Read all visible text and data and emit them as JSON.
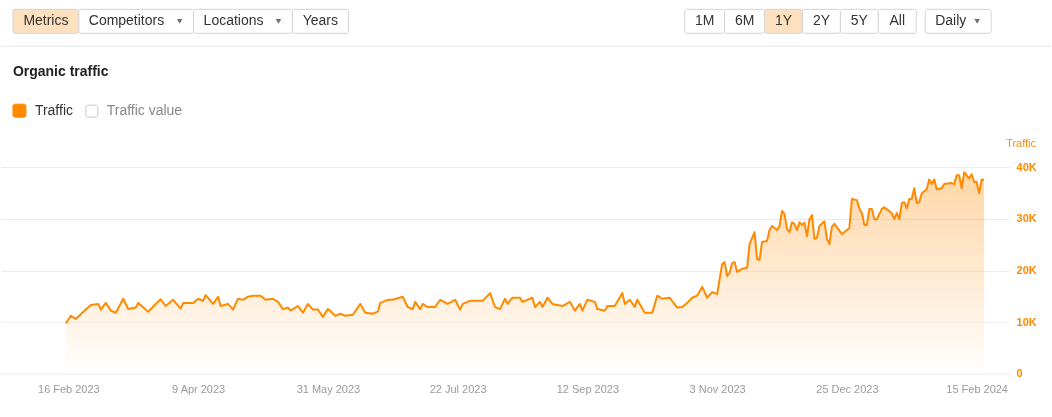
{
  "chart_data": {
    "type": "area",
    "title": "Organic traffic",
    "ylabel": "Traffic",
    "annotations": [
      "Metrics",
      "Competitors",
      "Locations",
      "Years",
      "1M",
      "6M",
      "1Y",
      "2Y",
      "5Y",
      "All",
      "Daily",
      "Traffic value"
    ],
    "legend": "top left",
    "grid": "y",
    "xlim": [
      "2023-01-20",
      "2024-02-28"
    ],
    "xticks": [
      {
        "value": "2023-02-16",
        "label": "16 Feb 2023"
      },
      {
        "value": "2023-04-09",
        "label": "9 Apr 2023"
      },
      {
        "value": "2023-05-31",
        "label": "31 May 2023"
      },
      {
        "value": "2023-07-22",
        "label": "22 Jul 2023"
      },
      {
        "value": "2023-09-12",
        "label": "12 Sep 2023"
      },
      {
        "value": "2023-11-03",
        "label": "3 Nov 2023"
      },
      {
        "value": "2023-12-25",
        "label": "25 Dec 2023"
      },
      {
        "value": "2024-02-15",
        "label": "15 Feb 2024"
      }
    ],
    "ylim": [
      0,
      40000
    ],
    "yticks": [
      0,
      {
        "value": 10000,
        "label": "10K"
      },
      {
        "value": 20000,
        "label": "20K"
      },
      {
        "value": 30000,
        "label": "30K"
      },
      {
        "value": 40000,
        "label": "40K"
      }
    ],
    "x": [
      "2023-02-15",
      "2023-02-17",
      "2023-02-19",
      "2023-02-22",
      "2023-02-25",
      "2023-02-28",
      "2023-03-01",
      "2023-03-03",
      "2023-03-05",
      "2023-03-07",
      "2023-03-10",
      "2023-03-12",
      "2023-03-15",
      "2023-03-16",
      "2023-03-20",
      "2023-03-23",
      "2023-03-25",
      "2023-03-27",
      "2023-03-30",
      "2023-04-02",
      "2023-04-03",
      "2023-04-07",
      "2023-04-09",
      "2023-04-11",
      "2023-04-12",
      "2023-04-15",
      "2023-04-17",
      "2023-04-18",
      "2023-04-21",
      "2023-04-23",
      "2023-04-25",
      "2023-04-27",
      "2023-04-29",
      "2023-05-01",
      "2023-05-04",
      "2023-05-06",
      "2023-05-09",
      "2023-05-11",
      "2023-05-13",
      "2023-05-15",
      "2023-05-16",
      "2023-05-19",
      "2023-05-21",
      "2023-05-23",
      "2023-05-25",
      "2023-05-27",
      "2023-05-29",
      "2023-05-31",
      "2023-06-03",
      "2023-06-05",
      "2023-06-07",
      "2023-06-10",
      "2023-06-13",
      "2023-06-15",
      "2023-06-18",
      "2023-06-20",
      "2023-06-21",
      "2023-06-24",
      "2023-06-26",
      "2023-06-30",
      "2023-07-02",
      "2023-07-04",
      "2023-07-05",
      "2023-07-07",
      "2023-07-08",
      "2023-07-10",
      "2023-07-13",
      "2023-07-15",
      "2023-07-18",
      "2023-07-21",
      "2023-07-23",
      "2023-07-24",
      "2023-07-27",
      "2023-08-01",
      "2023-08-04",
      "2023-08-06",
      "2023-08-08",
      "2023-08-10",
      "2023-08-11",
      "2023-08-13",
      "2023-08-16",
      "2023-08-17",
      "2023-08-20",
      "2023-08-21",
      "2023-08-22",
      "2023-08-24",
      "2023-08-25",
      "2023-08-27",
      "2023-08-29",
      "2023-09-02",
      "2023-09-05",
      "2023-09-07",
      "2023-09-09",
      "2023-09-10",
      "2023-09-12",
      "2023-09-15",
      "2023-09-16",
      "2023-09-19",
      "2023-09-20",
      "2023-09-23",
      "2023-09-26",
      "2023-09-27",
      "2023-09-29",
      "2023-10-01",
      "2023-10-02",
      "2023-10-05",
      "2023-10-08",
      "2023-10-10",
      "2023-10-12",
      "2023-10-15",
      "2023-10-18",
      "2023-10-20",
      "2023-10-22",
      "2023-10-24",
      "2023-10-26",
      "2023-10-28",
      "2023-10-30",
      "2023-11-01",
      "2023-11-03",
      "2023-11-05",
      "2023-11-06",
      "2023-11-07",
      "2023-11-08",
      "2023-11-09",
      "2023-11-10",
      "2023-11-11",
      "2023-11-13",
      "2023-11-15",
      "2023-11-16",
      "2023-11-18",
      "2023-11-19",
      "2023-11-20",
      "2023-11-21",
      "2023-11-23",
      "2023-11-24",
      "2023-11-25",
      "2023-11-27",
      "2023-11-28",
      "2023-11-29",
      "2023-11-30",
      "2023-12-01",
      "2023-12-02",
      "2023-12-03",
      "2023-12-04",
      "2023-12-05",
      "2023-12-06",
      "2023-12-07",
      "2023-12-08",
      "2023-12-09",
      "2023-12-10",
      "2023-12-11",
      "2023-12-12",
      "2023-12-13",
      "2023-12-14",
      "2023-12-16",
      "2023-12-17",
      "2023-12-18",
      "2023-12-19",
      "2023-12-20",
      "2023-12-23",
      "2023-12-25",
      "2023-12-26",
      "2023-12-27",
      "2023-12-29",
      "2023-12-30",
      "2023-12-31",
      "2024-01-01",
      "2024-01-02",
      "2024-01-03",
      "2024-01-04",
      "2024-01-05",
      "2024-01-06",
      "2024-01-08",
      "2024-01-09",
      "2024-01-12",
      "2024-01-13",
      "2024-01-14",
      "2024-01-15",
      "2024-01-16",
      "2024-01-17",
      "2024-01-18",
      "2024-01-19",
      "2024-01-20",
      "2024-01-21",
      "2024-01-22",
      "2024-01-23",
      "2024-01-24",
      "2024-01-26",
      "2024-01-27",
      "2024-01-28",
      "2024-01-29",
      "2024-01-30",
      "2024-02-01",
      "2024-02-02",
      "2024-02-05",
      "2024-02-06",
      "2024-02-07",
      "2024-02-08",
      "2024-02-09",
      "2024-02-10",
      "2024-02-11",
      "2024-02-12",
      "2024-02-13",
      "2024-02-14",
      "2024-02-15",
      "2024-02-16",
      "2024-02-17",
      "2024-02-18"
    ],
    "series": [
      {
        "name": "Traffic",
        "color": "#ff8a00",
        "values": [
          9700,
          11200,
          10600,
          12000,
          13300,
          13500,
          12400,
          13700,
          12200,
          11800,
          14500,
          12500,
          12800,
          13700,
          12000,
          13500,
          14400,
          13100,
          14300,
          12600,
          13700,
          13700,
          14500,
          14100,
          15200,
          13500,
          14900,
          13100,
          13500,
          12400,
          14500,
          14300,
          14900,
          15100,
          15100,
          14300,
          14500,
          13900,
          12500,
          12800,
          12200,
          13100,
          11800,
          13500,
          12400,
          12400,
          11000,
          12500,
          11200,
          11600,
          11200,
          11400,
          13500,
          11800,
          11600,
          12000,
          13700,
          14300,
          14300,
          14900,
          12900,
          12500,
          13900,
          12500,
          13500,
          12900,
          12900,
          14300,
          13500,
          14300,
          12400,
          13500,
          14100,
          14100,
          15600,
          12900,
          12500,
          14500,
          13500,
          14700,
          14700,
          13900,
          14500,
          14700,
          12900,
          13900,
          12900,
          14700,
          13500,
          13100,
          13900,
          12200,
          13500,
          12200,
          14300,
          13900,
          12500,
          12200,
          13100,
          13100,
          15600,
          13500,
          14300,
          12900,
          14300,
          11800,
          11800,
          15100,
          14500,
          14700,
          12800,
          12900,
          13700,
          14700,
          15100,
          16800,
          14700,
          15800,
          15400,
          21200,
          21600,
          18900,
          19500,
          21400,
          21600,
          19700,
          20300,
          20500,
          25100,
          27400,
          22200,
          22000,
          25500,
          25700,
          27800,
          28600,
          27800,
          28600,
          31500,
          30900,
          28000,
          27400,
          29300,
          29000,
          27800,
          29300,
          28800,
          29200,
          26600,
          29900,
          30700,
          26100,
          26300,
          28600,
          29500,
          26100,
          25100,
          28400,
          29000,
          27000,
          27800,
          28200,
          33800,
          33600,
          32000,
          31100,
          28800,
          28800,
          31900,
          31900,
          29900,
          29900,
          31900,
          32200,
          31100,
          29900,
          31100,
          29900,
          33000,
          33200,
          32000,
          33800,
          33800,
          35900,
          33000,
          33200,
          34900,
          35700,
          37600,
          36700,
          37600,
          35700,
          35900,
          36700,
          36900,
          36700,
          38400,
          38400,
          35900,
          39000,
          38400,
          37800,
          38600,
          37100,
          37100,
          34900,
          37600,
          37500
        ]
      }
    ]
  }
}
